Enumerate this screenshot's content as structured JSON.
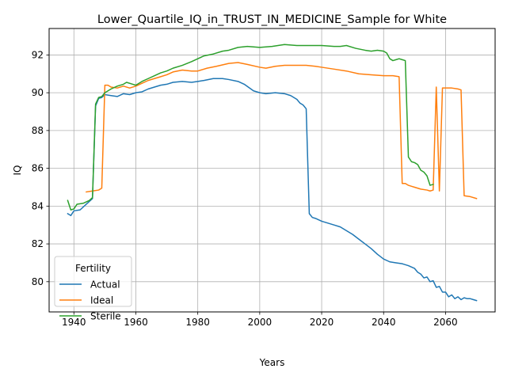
{
  "chart_data": {
    "type": "line",
    "title": "Lower_Quartile_IQ_in_TRUST_IN_MEDICINE_Sample for White",
    "xlabel": "Years",
    "ylabel": "IQ",
    "xlim": [
      1932,
      2076
    ],
    "ylim": [
      78.4,
      93.4
    ],
    "xticks": [
      1940,
      1960,
      1980,
      2000,
      2020,
      2040,
      2060
    ],
    "yticks": [
      80,
      82,
      84,
      86,
      88,
      90,
      92
    ],
    "grid": true,
    "legend": {
      "title": "Fertility",
      "position": "lower-left"
    },
    "series": [
      {
        "name": "Actual",
        "color": "#1f77b4",
        "points": [
          [
            1938,
            83.6
          ],
          [
            1939,
            83.5
          ],
          [
            1940,
            83.75
          ],
          [
            1942,
            83.8
          ],
          [
            1944,
            84.1
          ],
          [
            1946,
            84.4
          ],
          [
            1947,
            89.3
          ],
          [
            1948,
            89.7
          ],
          [
            1949,
            89.75
          ],
          [
            1950,
            89.9
          ],
          [
            1952,
            89.85
          ],
          [
            1954,
            89.8
          ],
          [
            1956,
            89.95
          ],
          [
            1958,
            89.9
          ],
          [
            1960,
            90.0
          ],
          [
            1962,
            90.05
          ],
          [
            1964,
            90.2
          ],
          [
            1966,
            90.3
          ],
          [
            1968,
            90.4
          ],
          [
            1970,
            90.45
          ],
          [
            1972,
            90.55
          ],
          [
            1975,
            90.6
          ],
          [
            1978,
            90.55
          ],
          [
            1980,
            90.6
          ],
          [
            1982,
            90.65
          ],
          [
            1985,
            90.75
          ],
          [
            1988,
            90.75
          ],
          [
            1990,
            90.7
          ],
          [
            1993,
            90.6
          ],
          [
            1995,
            90.45
          ],
          [
            1998,
            90.1
          ],
          [
            2000,
            90.0
          ],
          [
            2002,
            89.95
          ],
          [
            2005,
            90.0
          ],
          [
            2008,
            89.95
          ],
          [
            2010,
            89.85
          ],
          [
            2012,
            89.65
          ],
          [
            2013,
            89.45
          ],
          [
            2014,
            89.35
          ],
          [
            2015,
            89.15
          ],
          [
            2016,
            83.6
          ],
          [
            2017,
            83.4
          ],
          [
            2018,
            83.35
          ],
          [
            2020,
            83.2
          ],
          [
            2022,
            83.1
          ],
          [
            2024,
            83.0
          ],
          [
            2026,
            82.9
          ],
          [
            2028,
            82.7
          ],
          [
            2030,
            82.5
          ],
          [
            2032,
            82.25
          ],
          [
            2034,
            82.0
          ],
          [
            2036,
            81.75
          ],
          [
            2038,
            81.45
          ],
          [
            2040,
            81.2
          ],
          [
            2042,
            81.05
          ],
          [
            2044,
            81.0
          ],
          [
            2046,
            80.95
          ],
          [
            2048,
            80.85
          ],
          [
            2050,
            80.7
          ],
          [
            2051,
            80.5
          ],
          [
            2052,
            80.4
          ],
          [
            2053,
            80.2
          ],
          [
            2054,
            80.25
          ],
          [
            2055,
            80.0
          ],
          [
            2056,
            80.05
          ],
          [
            2057,
            79.7
          ],
          [
            2058,
            79.75
          ],
          [
            2059,
            79.45
          ],
          [
            2060,
            79.45
          ],
          [
            2061,
            79.2
          ],
          [
            2062,
            79.3
          ],
          [
            2063,
            79.1
          ],
          [
            2064,
            79.2
          ],
          [
            2065,
            79.05
          ],
          [
            2066,
            79.15
          ],
          [
            2067,
            79.1
          ],
          [
            2068,
            79.1
          ],
          [
            2069,
            79.05
          ],
          [
            2070,
            79.0
          ]
        ]
      },
      {
        "name": "Ideal",
        "color": "#ff7f0e",
        "points": [
          [
            1944,
            84.75
          ],
          [
            1946,
            84.8
          ],
          [
            1948,
            84.85
          ],
          [
            1949,
            84.95
          ],
          [
            1950,
            90.4
          ],
          [
            1951,
            90.4
          ],
          [
            1952,
            90.3
          ],
          [
            1954,
            90.25
          ],
          [
            1956,
            90.35
          ],
          [
            1958,
            90.25
          ],
          [
            1960,
            90.35
          ],
          [
            1962,
            90.5
          ],
          [
            1964,
            90.65
          ],
          [
            1966,
            90.75
          ],
          [
            1968,
            90.85
          ],
          [
            1970,
            90.95
          ],
          [
            1972,
            91.1
          ],
          [
            1975,
            91.2
          ],
          [
            1978,
            91.15
          ],
          [
            1980,
            91.15
          ],
          [
            1983,
            91.3
          ],
          [
            1986,
            91.4
          ],
          [
            1990,
            91.55
          ],
          [
            1993,
            91.6
          ],
          [
            1996,
            91.5
          ],
          [
            2000,
            91.35
          ],
          [
            2002,
            91.3
          ],
          [
            2005,
            91.4
          ],
          [
            2008,
            91.45
          ],
          [
            2012,
            91.45
          ],
          [
            2015,
            91.45
          ],
          [
            2018,
            91.4
          ],
          [
            2020,
            91.35
          ],
          [
            2024,
            91.25
          ],
          [
            2028,
            91.15
          ],
          [
            2032,
            91.0
          ],
          [
            2036,
            90.95
          ],
          [
            2040,
            90.9
          ],
          [
            2043,
            90.9
          ],
          [
            2045,
            90.85
          ],
          [
            2046,
            85.2
          ],
          [
            2047,
            85.2
          ],
          [
            2048,
            85.1
          ],
          [
            2049,
            85.05
          ],
          [
            2050,
            85.0
          ],
          [
            2052,
            84.9
          ],
          [
            2054,
            84.85
          ],
          [
            2055,
            84.8
          ],
          [
            2056,
            84.85
          ],
          [
            2057,
            90.3
          ],
          [
            2058,
            84.8
          ],
          [
            2059,
            90.25
          ],
          [
            2060,
            90.25
          ],
          [
            2062,
            90.25
          ],
          [
            2064,
            90.2
          ],
          [
            2065,
            90.15
          ],
          [
            2066,
            84.55
          ],
          [
            2068,
            84.5
          ],
          [
            2070,
            84.4
          ]
        ]
      },
      {
        "name": "Sterile",
        "color": "#2ca02c",
        "points": [
          [
            1938,
            84.3
          ],
          [
            1939,
            83.8
          ],
          [
            1940,
            83.85
          ],
          [
            1941,
            84.1
          ],
          [
            1943,
            84.15
          ],
          [
            1945,
            84.3
          ],
          [
            1946,
            84.45
          ],
          [
            1947,
            89.4
          ],
          [
            1948,
            89.75
          ],
          [
            1949,
            89.8
          ],
          [
            1950,
            90.0
          ],
          [
            1952,
            90.2
          ],
          [
            1954,
            90.35
          ],
          [
            1956,
            90.45
          ],
          [
            1957,
            90.55
          ],
          [
            1959,
            90.45
          ],
          [
            1960,
            90.4
          ],
          [
            1962,
            90.6
          ],
          [
            1964,
            90.75
          ],
          [
            1966,
            90.9
          ],
          [
            1968,
            91.05
          ],
          [
            1970,
            91.15
          ],
          [
            1972,
            91.3
          ],
          [
            1975,
            91.45
          ],
          [
            1978,
            91.65
          ],
          [
            1980,
            91.8
          ],
          [
            1982,
            91.95
          ],
          [
            1985,
            92.05
          ],
          [
            1988,
            92.2
          ],
          [
            1990,
            92.25
          ],
          [
            1993,
            92.4
          ],
          [
            1996,
            92.45
          ],
          [
            2000,
            92.4
          ],
          [
            2004,
            92.45
          ],
          [
            2008,
            92.55
          ],
          [
            2012,
            92.5
          ],
          [
            2016,
            92.5
          ],
          [
            2020,
            92.5
          ],
          [
            2024,
            92.45
          ],
          [
            2026,
            92.45
          ],
          [
            2028,
            92.5
          ],
          [
            2031,
            92.35
          ],
          [
            2034,
            92.25
          ],
          [
            2036,
            92.2
          ],
          [
            2038,
            92.25
          ],
          [
            2040,
            92.2
          ],
          [
            2041,
            92.1
          ],
          [
            2042,
            91.8
          ],
          [
            2043,
            91.7
          ],
          [
            2044,
            91.75
          ],
          [
            2045,
            91.8
          ],
          [
            2046,
            91.75
          ],
          [
            2047,
            91.7
          ],
          [
            2048,
            86.6
          ],
          [
            2049,
            86.35
          ],
          [
            2050,
            86.3
          ],
          [
            2051,
            86.2
          ],
          [
            2052,
            85.9
          ],
          [
            2053,
            85.8
          ],
          [
            2054,
            85.6
          ],
          [
            2055,
            85.1
          ],
          [
            2056,
            85.15
          ]
        ]
      }
    ]
  }
}
